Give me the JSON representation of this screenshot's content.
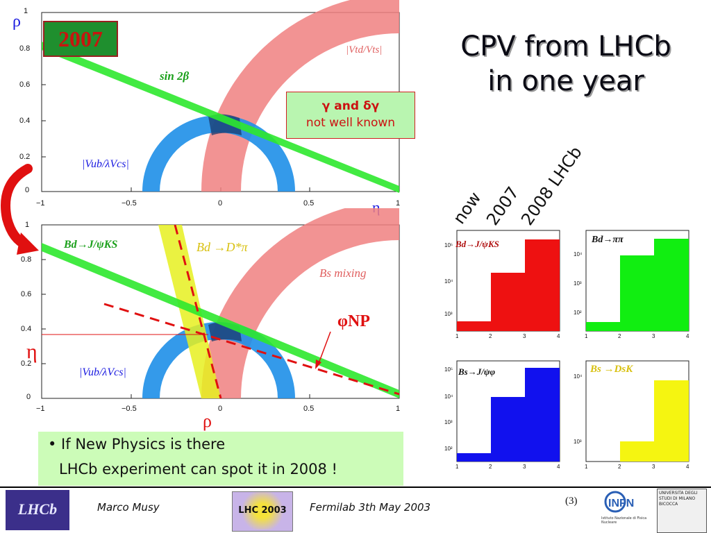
{
  "title": {
    "line1": "CPV from LHCb",
    "line2": "in one year"
  },
  "plot_top": {
    "year_badge": "2007",
    "rho_label": "ρ",
    "eta_label": "η",
    "y_ticks": [
      "1",
      "0.8",
      "0.6",
      "0.4",
      "0.2",
      "0"
    ],
    "x_ticks": [
      "−1",
      "−0.5",
      "0",
      "0.5",
      "1"
    ],
    "label_sin2beta": "sin 2β",
    "label_vtd": "|Vtd/Vts|",
    "label_vub": "|Vub/λVcs|",
    "note_line1": "γ and δγ",
    "note_line2": "not well known"
  },
  "plot_bottom": {
    "y_ticks": [
      "1",
      "0.8",
      "0.6",
      "0.4",
      "0.2",
      "0"
    ],
    "x_ticks": [
      "−1",
      "−0.5",
      "0",
      "0.5",
      "1"
    ],
    "label_bdjpsiks": "Bd→J/ψKS",
    "label_bddstarpi": "Bd →D*π",
    "label_bsmixing": "Bs mixing",
    "label_phinp": "φNP",
    "label_vub": "|Vub/λVcs|",
    "eta_label": "η",
    "rho_label": "ρ"
  },
  "histograms": {
    "column_labels": [
      "now",
      "2007",
      "2008 LHCb"
    ],
    "x_ticks": [
      "1",
      "2",
      "3",
      "4"
    ],
    "panels": [
      {
        "label": "Bd→J/ψKS",
        "color": "#ee1111",
        "y_ticks": [
          "10⁵",
          "10⁴",
          "10³"
        ]
      },
      {
        "label": "Bd→ππ",
        "color": "#11ee11",
        "y_ticks": [
          "10⁴",
          "10³",
          "10²"
        ]
      },
      {
        "label": "Bs→J/ψφ",
        "color": "#1111ee",
        "y_ticks": [
          "10⁵",
          "10⁴",
          "10³",
          "10²"
        ]
      },
      {
        "label": "Bs →DsK",
        "color": "#f5f511",
        "y_ticks": [
          "10⁴",
          "10³"
        ]
      }
    ]
  },
  "bullet": {
    "line1": "• If New Physics is there",
    "line2": "LHCb experiment can spot it in 2008 !"
  },
  "footer": {
    "author": "Marco Musy",
    "event": "Fermilab 3th May 2003",
    "page": "(3)",
    "logo_left": "LHCb",
    "logo_mid": "LHC 2003",
    "logo_infn": "INFN",
    "logo_infn_sub": "Istituto Nazionale di Fisica Nucleare",
    "logo_unimib": "UNIVERSITA DEGLI STUDI DI MILANO BICOCCA"
  }
}
